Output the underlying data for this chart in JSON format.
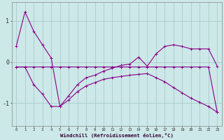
{
  "background_color": "#cce8e8",
  "grid_color": "#aacccc",
  "line_color": "#880088",
  "xlabel": "Windchill (Refroidissement éolien,°C)",
  "xlim": [
    -0.5,
    23.5
  ],
  "ylim": [
    -1.55,
    1.45
  ],
  "x_ticks": [
    0,
    1,
    2,
    3,
    4,
    5,
    6,
    7,
    8,
    9,
    10,
    11,
    12,
    13,
    14,
    15,
    16,
    17,
    18,
    19,
    20,
    21,
    22,
    23
  ],
  "yticks": [
    -1,
    0,
    1
  ],
  "series1_x": [
    0,
    1,
    2,
    3,
    4,
    5,
    6,
    7,
    8,
    9,
    10,
    11,
    12,
    13,
    14,
    15,
    16,
    17,
    18,
    19,
    20,
    21,
    22,
    23
  ],
  "series1_y": [
    0.38,
    1.22,
    0.75,
    0.42,
    0.1,
    -1.08,
    -0.82,
    -0.55,
    -0.38,
    -0.32,
    -0.22,
    -0.15,
    -0.08,
    -0.05,
    0.12,
    -0.1,
    0.2,
    0.38,
    0.42,
    0.38,
    0.32,
    0.32,
    0.32,
    -0.1
  ],
  "series2_x": [
    0,
    1,
    2,
    3,
    4,
    5,
    6,
    7,
    8,
    9,
    10,
    11,
    12,
    13,
    14,
    15,
    16,
    17,
    18,
    19,
    20,
    21,
    22,
    23
  ],
  "series2_y": [
    -0.12,
    -0.12,
    -0.12,
    -0.12,
    -0.12,
    -0.12,
    -0.12,
    -0.12,
    -0.12,
    -0.12,
    -0.12,
    -0.12,
    -0.12,
    -0.12,
    -0.12,
    -0.12,
    -0.12,
    -0.12,
    -0.12,
    -0.12,
    -0.12,
    -0.12,
    -0.12,
    -1.22
  ],
  "series3_x": [
    0,
    1,
    2,
    3,
    4,
    5,
    6,
    7,
    8,
    9,
    10,
    11,
    12,
    13,
    14,
    15,
    16,
    17,
    18,
    19,
    20,
    21,
    22,
    23
  ],
  "series3_y": [
    -0.12,
    -0.12,
    -0.55,
    -0.78,
    -1.08,
    -1.08,
    -0.92,
    -0.72,
    -0.58,
    -0.5,
    -0.42,
    -0.38,
    -0.35,
    -0.32,
    -0.3,
    -0.28,
    -0.38,
    -0.48,
    -0.62,
    -0.75,
    -0.88,
    -0.98,
    -1.08,
    -1.22
  ]
}
